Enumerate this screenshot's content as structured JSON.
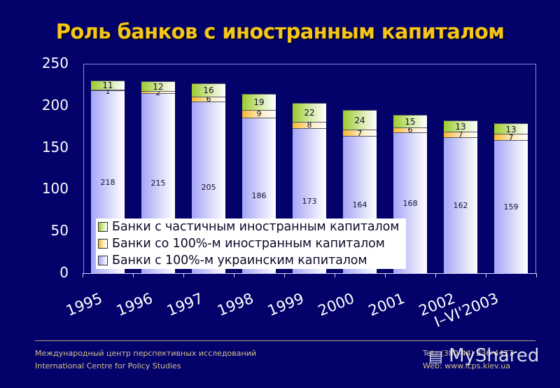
{
  "title": "Роль банков с иностранным капиталом",
  "colors": {
    "background": "#02026a",
    "title": "#f5c518",
    "ukrainian_capital": "#a4a4f6",
    "foreign_100": "#f5b82e",
    "partial_foreign": "#9ccb2c"
  },
  "chart_data": {
    "type": "bar",
    "stacked": true,
    "title": "Роль банков с иностранным капиталом",
    "xlabel": "",
    "ylabel": "",
    "ylim": [
      0,
      250
    ],
    "yticks": [
      0,
      50,
      100,
      150,
      200,
      250
    ],
    "categories": [
      "1995",
      "1996",
      "1997",
      "1998",
      "1999",
      "2000",
      "2001",
      "2002",
      "I–VI'2003"
    ],
    "series": [
      {
        "name": "Банки с 100%-м украинским капиталом",
        "values": [
          218,
          215,
          205,
          186,
          173,
          164,
          168,
          162,
          159
        ]
      },
      {
        "name": "Банки со 100%-м иностранным капиталом",
        "values": [
          1,
          2,
          6,
          9,
          8,
          7,
          6,
          7,
          7
        ]
      },
      {
        "name": "Банки с частичным иностранным капиталом",
        "values": [
          11,
          12,
          16,
          19,
          22,
          24,
          15,
          13,
          13
        ]
      }
    ],
    "legend_position": "inside-bottom-left",
    "grid": false
  },
  "legend": [
    {
      "label": "Банки с частичным иностранным капиталом",
      "swatch": "partial"
    },
    {
      "label": "Банки со 100%-м иностранным капиталом",
      "swatch": "full"
    },
    {
      "label": "Банки с 100%-м украинским капиталом",
      "swatch": "ua"
    }
  ],
  "footer": {
    "org_ru": "Международный центр перспективных исследований",
    "org_en": "International Centre for Policy Studies",
    "tel": "Tel.: (380-44) 236-4477",
    "web": "Web: www.icps.kiev.ua",
    "watermark": "MyShared"
  }
}
